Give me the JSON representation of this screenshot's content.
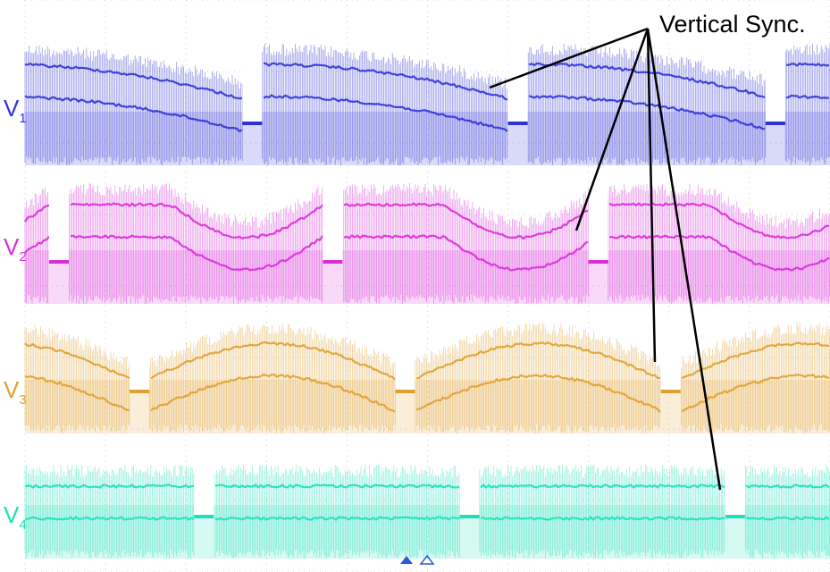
{
  "chart_data": {
    "type": "line",
    "title": "",
    "xlabel": "",
    "ylabel": "",
    "grid": true,
    "annotation": {
      "text": "Vertical Sync.",
      "points_to": [
        "V1",
        "V2",
        "V3",
        "V4"
      ]
    },
    "series": [
      {
        "name": "V",
        "sub": "1",
        "color": "#2f33d6",
        "shape": "hump-down",
        "sync_positions": [
          0.27,
          0.6,
          0.92
        ]
      },
      {
        "name": "V",
        "sub": "2",
        "color": "#d92ed9",
        "shape": "dip",
        "sync_positions": [
          0.03,
          0.37,
          0.7
        ]
      },
      {
        "name": "V",
        "sub": "3",
        "color": "#e0a030",
        "shape": "arch",
        "sync_positions": [
          0.13,
          0.46,
          0.79
        ]
      },
      {
        "name": "V",
        "sub": "4",
        "color": "#1ee0b8",
        "shape": "step",
        "sync_positions": [
          0.21,
          0.54,
          0.87
        ]
      }
    ]
  }
}
